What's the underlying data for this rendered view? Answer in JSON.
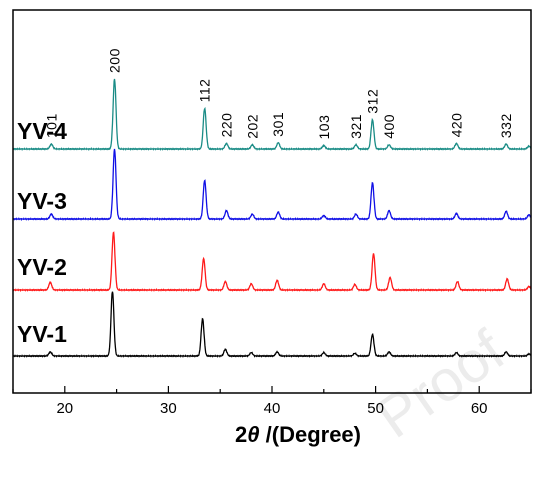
{
  "watermark": "Proof",
  "chart_data": {
    "type": "line",
    "xlabel_prefix": "2",
    "xlabel_symbol": "θ",
    "xlabel_suffix": " /(Degree)",
    "xlim": [
      15,
      65
    ],
    "x_ticks": [
      20,
      30,
      40,
      50,
      60
    ],
    "y_ticks": false,
    "grid": false,
    "series": [
      {
        "name": "YV-4",
        "color": "#1a8c86",
        "peaks": [
          [
            18.7,
            0.07
          ],
          [
            24.8,
            1.0
          ],
          [
            33.5,
            0.58
          ],
          [
            35.6,
            0.08
          ],
          [
            38.1,
            0.06
          ],
          [
            40.6,
            0.09
          ],
          [
            45.0,
            0.05
          ],
          [
            48.1,
            0.06
          ],
          [
            49.7,
            0.42
          ],
          [
            51.3,
            0.06
          ],
          [
            57.8,
            0.08
          ],
          [
            62.6,
            0.07
          ],
          [
            64.8,
            0.04
          ]
        ]
      },
      {
        "name": "YV-3",
        "color": "#1010e6",
        "peaks": [
          [
            18.7,
            0.07
          ],
          [
            24.8,
            1.0
          ],
          [
            33.5,
            0.55
          ],
          [
            35.6,
            0.12
          ],
          [
            38.1,
            0.07
          ],
          [
            40.6,
            0.1
          ],
          [
            45.0,
            0.05
          ],
          [
            48.1,
            0.07
          ],
          [
            49.7,
            0.52
          ],
          [
            51.3,
            0.12
          ],
          [
            57.8,
            0.08
          ],
          [
            62.6,
            0.11
          ],
          [
            64.8,
            0.06
          ]
        ]
      },
      {
        "name": "YV-2",
        "color": "#ff1a1a",
        "peaks": [
          [
            18.6,
            0.11
          ],
          [
            24.7,
            0.83
          ],
          [
            33.4,
            0.45
          ],
          [
            35.5,
            0.12
          ],
          [
            38.0,
            0.09
          ],
          [
            40.5,
            0.14
          ],
          [
            45.0,
            0.09
          ],
          [
            48.0,
            0.08
          ],
          [
            49.8,
            0.52
          ],
          [
            51.4,
            0.18
          ],
          [
            57.9,
            0.12
          ],
          [
            62.7,
            0.16
          ],
          [
            64.8,
            0.05
          ]
        ]
      },
      {
        "name": "YV-1",
        "color": "#000000",
        "peaks": [
          [
            18.6,
            0.06
          ],
          [
            24.6,
            0.95
          ],
          [
            33.3,
            0.55
          ],
          [
            35.5,
            0.1
          ],
          [
            38.0,
            0.05
          ],
          [
            40.5,
            0.06
          ],
          [
            45.0,
            0.05
          ],
          [
            48.0,
            0.04
          ],
          [
            49.7,
            0.32
          ],
          [
            51.3,
            0.06
          ],
          [
            57.8,
            0.05
          ],
          [
            62.6,
            0.06
          ],
          [
            64.8,
            0.03
          ]
        ]
      }
    ],
    "peak_labels": [
      {
        "text": "101",
        "x": 18.7
      },
      {
        "text": "200",
        "x": 24.8
      },
      {
        "text": "112",
        "x": 33.5
      },
      {
        "text": "220",
        "x": 35.6
      },
      {
        "text": "202",
        "x": 38.1
      },
      {
        "text": "301",
        "x": 40.6
      },
      {
        "text": "103",
        "x": 45.0
      },
      {
        "text": "321",
        "x": 48.1
      },
      {
        "text": "312",
        "x": 49.7
      },
      {
        "text": "400",
        "x": 51.3
      },
      {
        "text": "420",
        "x": 57.8
      },
      {
        "text": "332",
        "x": 62.6
      }
    ]
  }
}
